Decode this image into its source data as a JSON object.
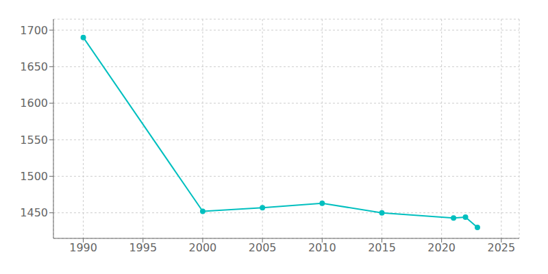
{
  "chart_data": {
    "type": "line",
    "x": [
      1990,
      2000,
      2005,
      2010,
      2015,
      2021,
      2022,
      2023
    ],
    "values": [
      1690,
      1452,
      1457,
      1463,
      1450,
      1443,
      1444,
      1430
    ],
    "color": "#00BFBF",
    "marker": "circle",
    "xlim": [
      1987.5,
      2026.5
    ],
    "ylim": [
      1415,
      1715
    ],
    "xticks": [
      1990,
      1995,
      2000,
      2005,
      2010,
      2015,
      2020,
      2025
    ],
    "yticks": [
      1450,
      1500,
      1550,
      1600,
      1650,
      1700
    ],
    "grid": true
  }
}
